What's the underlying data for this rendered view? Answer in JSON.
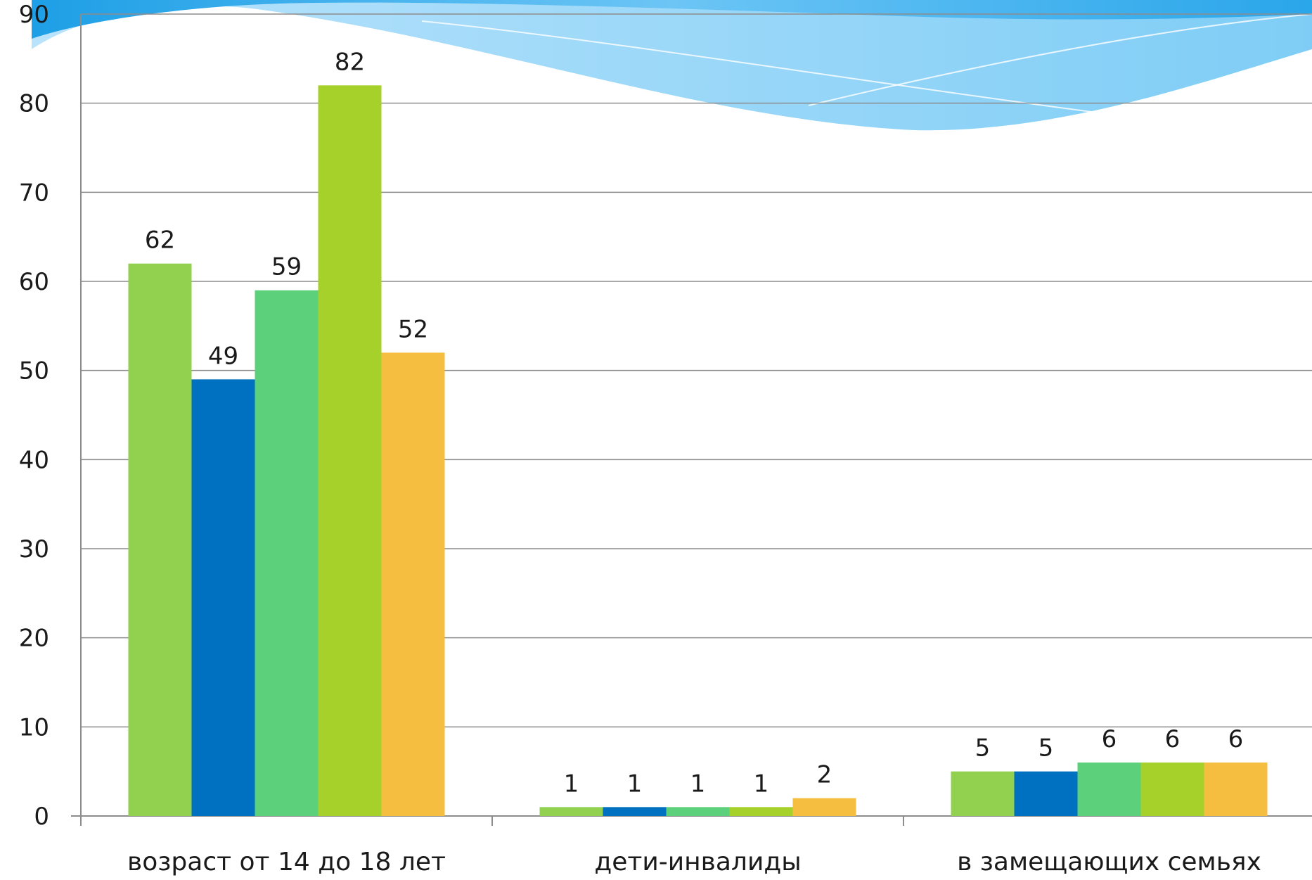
{
  "chart_data": {
    "type": "bar",
    "title": "",
    "xlabel": "",
    "ylabel": "",
    "ylim": [
      0,
      90
    ],
    "yticks": [
      0,
      10,
      20,
      30,
      40,
      50,
      60,
      70,
      80,
      90
    ],
    "grid": true,
    "legend": "none",
    "categories": [
      "возраст от 14 до 18 лет",
      "дети-инвалиды",
      "в замещающих семьях"
    ],
    "series": [
      {
        "color": "#92d050",
        "values": [
          62,
          1,
          5
        ]
      },
      {
        "color": "#0070c0",
        "values": [
          49,
          1,
          5
        ]
      },
      {
        "color": "#5cd07a",
        "values": [
          59,
          1,
          6
        ]
      },
      {
        "color": "#a5d12a",
        "values": [
          82,
          1,
          6
        ]
      },
      {
        "color": "#f5be41",
        "values": [
          52,
          2,
          6
        ]
      }
    ],
    "data_labels": true
  }
}
